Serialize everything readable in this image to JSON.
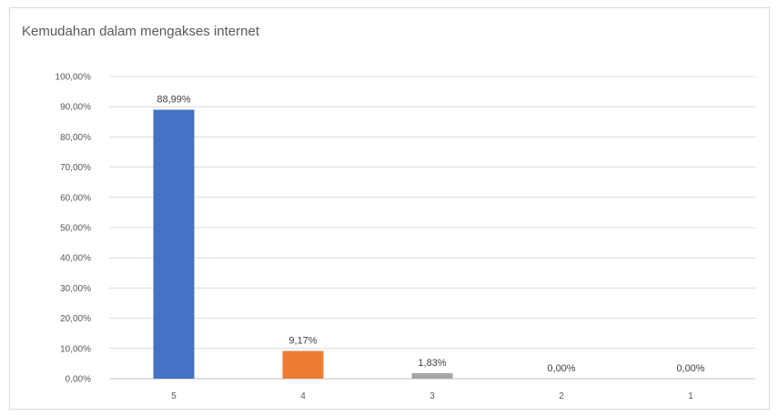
{
  "chart_data": {
    "type": "bar",
    "title": "Kemudahan dalam mengakses internet",
    "xlabel": "",
    "ylabel": "",
    "categories": [
      "5",
      "4",
      "3",
      "2",
      "1"
    ],
    "values": [
      88.99,
      9.17,
      1.83,
      0.0,
      0.0
    ],
    "data_labels": [
      "88,99%",
      "9,17%",
      "1,83%",
      "0,00%",
      "0,00%"
    ],
    "bar_colors": [
      "#4472c4",
      "#ed7d31",
      "#a5a5a5",
      "#ffc000",
      "#5b9bd5"
    ],
    "ylim": [
      0,
      100
    ],
    "y_ticks": [
      0,
      10,
      20,
      30,
      40,
      50,
      60,
      70,
      80,
      90,
      100
    ],
    "y_tick_labels": [
      "0,00%",
      "10,00%",
      "20,00%",
      "30,00%",
      "40,00%",
      "50,00%",
      "60,00%",
      "70,00%",
      "80,00%",
      "90,00%",
      "100,00%"
    ],
    "grid": true,
    "legend": "none"
  }
}
